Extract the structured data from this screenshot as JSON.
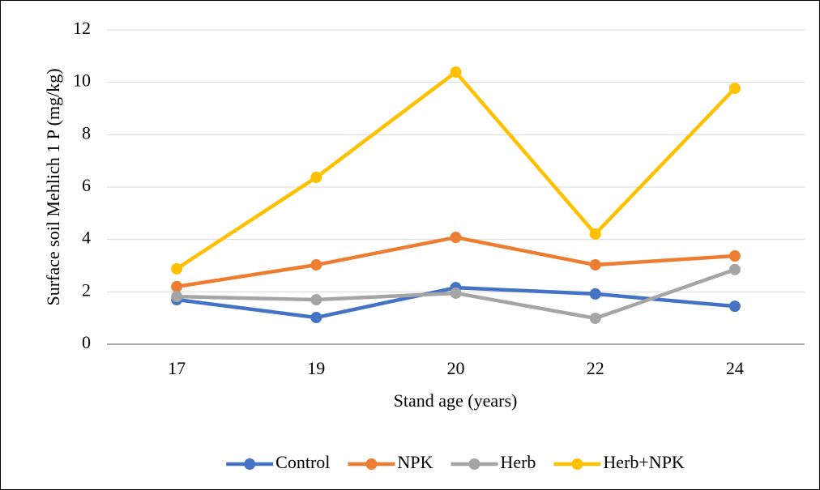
{
  "chart_data": {
    "type": "line",
    "y_label": "Surface soil Mehlich 1 P (mg/kg)",
    "x_label": "Stand age (years)",
    "categories": [
      "17",
      "19",
      "20",
      "22",
      "24"
    ],
    "series": [
      {
        "name": "Control",
        "color": "#4472c4",
        "values": [
          1.7,
          1.02,
          2.16,
          1.92,
          1.45
        ]
      },
      {
        "name": "NPK",
        "color": "#ed7d31",
        "values": [
          2.2,
          3.03,
          4.08,
          3.03,
          3.37
        ]
      },
      {
        "name": "Herb",
        "color": "#a5a5a5",
        "values": [
          1.82,
          1.7,
          1.95,
          0.99,
          2.85
        ]
      },
      {
        "name": "Herb+NPK",
        "color": "#ffc000",
        "values": [
          2.88,
          6.37,
          10.39,
          4.21,
          9.77
        ]
      }
    ],
    "ylim": [
      0,
      12
    ],
    "yticks": [
      0,
      2,
      4,
      6,
      8,
      10,
      12
    ],
    "grid": true,
    "legend": "bottom"
  }
}
